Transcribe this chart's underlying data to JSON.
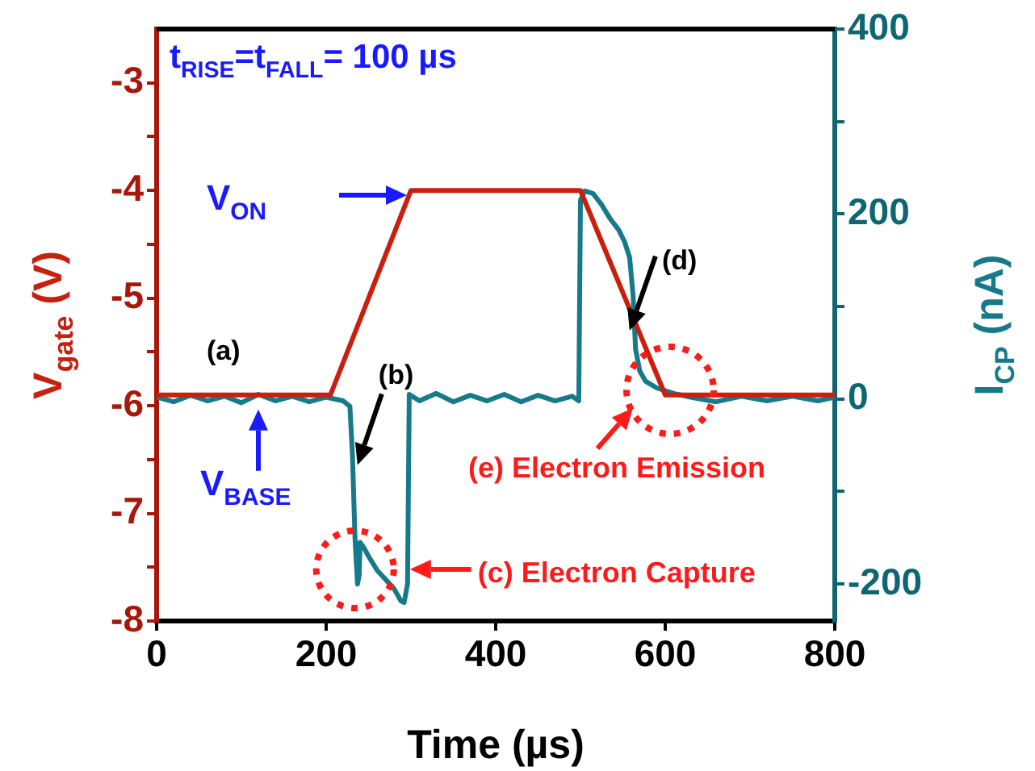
{
  "chart_data": {
    "type": "line",
    "xlabel": "Time (µs)",
    "ylabel": "V$_{gate}$ (V)",
    "y2label": "I$_{CP}$ (nA)",
    "xlim": [
      0,
      800
    ],
    "xticks": [
      0,
      200,
      400,
      600,
      800
    ],
    "ylim": [
      -8,
      -2.5
    ],
    "yticks": [
      -8,
      {
        "value": -7.5,
        "label": null
      },
      -7,
      {
        "value": -6.5,
        "label": null
      },
      -6,
      {
        "value": -5.5,
        "label": null
      },
      -5,
      {
        "value": -4.5,
        "label": null
      },
      -4,
      {
        "value": -3.5,
        "label": null
      },
      -3
    ],
    "y2lim": [
      -240,
      400
    ],
    "y2ticks": [
      -200,
      {
        "value": -100,
        "label": null
      },
      0,
      {
        "value": 100,
        "label": null
      },
      200,
      {
        "value": 300,
        "label": null
      },
      400
    ],
    "grid": false,
    "legend": false,
    "marker": "none",
    "line_style": "solid",
    "series": [
      {
        "color": "#c8200e",
        "x": [
          0,
          205,
          300,
          500,
          600,
          800
        ],
        "values": [
          -5.9,
          -5.9,
          -4,
          -4,
          -5.9,
          -5.9
        ]
      },
      {
        "color": "#177a8b",
        "axis": "y2",
        "x": [
          0,
          20,
          40,
          60,
          80,
          100,
          120,
          140,
          160,
          180,
          200,
          220,
          228,
          231,
          234,
          237,
          239,
          240,
          244,
          250,
          260,
          270,
          280,
          288,
          292,
          296,
          298,
          310,
          330,
          350,
          370,
          390,
          410,
          430,
          450,
          470,
          490,
          498,
          500,
          505,
          515,
          525,
          535,
          545,
          552,
          558,
          562,
          565,
          570,
          577,
          590,
          610,
          630,
          660,
          690,
          720,
          750,
          780,
          800
        ],
        "values": [
          2,
          -3,
          4,
          -2,
          3,
          -4,
          5,
          -2,
          3,
          -3,
          2,
          -2,
          -8,
          -60,
          -150,
          -200,
          -190,
          -155,
          -160,
          -170,
          -185,
          -195,
          -205,
          -218,
          -220,
          -200,
          5,
          -2,
          6,
          -3,
          4,
          -2,
          5,
          -3,
          4,
          -2,
          3,
          -2,
          215,
          225,
          222,
          210,
          195,
          183,
          170,
          153,
          113,
          54,
          30,
          19,
          12,
          6,
          2,
          -3,
          3,
          -2,
          3,
          -2,
          2
        ]
      }
    ],
    "annotations": [
      "t$_{RISE}$=t$_{FALL}$= 100 µs",
      "V$_{ON}$",
      {
        "text": "V$_{BASE}$",
        "x": 120,
        "y": -5.9
      },
      "(a)",
      {
        "text": "(b)",
        "x": 237,
        "y": -6.55
      },
      {
        "text": "(d)",
        "x": 558,
        "y": -5.3
      },
      {
        "text": "(c) Electron Capture",
        "x": 295,
        "y": -7.52
      },
      "(e) Electron Emission"
    ]
  }
}
